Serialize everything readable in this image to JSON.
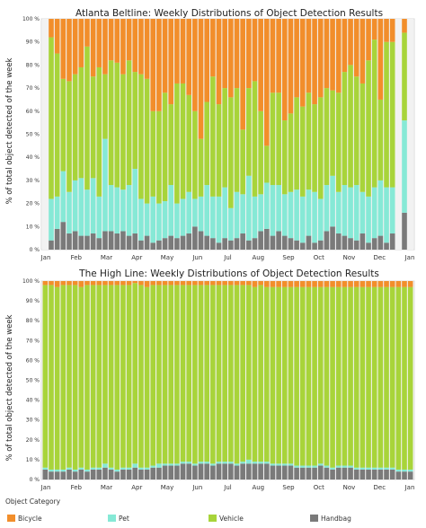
{
  "colors": {
    "bicycle": "#f28e2b",
    "pet": "#86e9d6",
    "vehicle": "#a8d43a",
    "handbag": "#7a7a7a",
    "frame": "#f2f2f2"
  },
  "legend": {
    "title": "Object Category",
    "items": [
      {
        "label": "Bicycle",
        "key": "bicycle",
        "color": "#f28e2b"
      },
      {
        "label": "Pet",
        "key": "pet",
        "color": "#86e9d6"
      },
      {
        "label": "Vehicle",
        "key": "vehicle",
        "color": "#a8d43a"
      },
      {
        "label": "Handbag",
        "key": "handbag",
        "color": "#7a7a7a"
      }
    ]
  },
  "chart_data": [
    {
      "type": "bar",
      "stacked": true,
      "title": "Atlanta Beltline: Weekly Distributions of Object Detection Results",
      "ylabel": "% of total object detected of the week",
      "ylim": [
        0,
        100
      ],
      "yticks": [
        "0 %",
        "10 %",
        "20 %",
        "30 %",
        "40 %",
        "50 %",
        "60 %",
        "70 %",
        "80 %",
        "90 %",
        "100 %"
      ],
      "month_labels": [
        "Jan",
        "Feb",
        "Mar",
        "Apr",
        "May",
        "Jun",
        "Jul",
        "Aug",
        "Sep",
        "Oct",
        "Nov",
        "Dec",
        "Jan"
      ],
      "series": [
        {
          "name": "Handbag",
          "key": "handbag",
          "values": [
            0,
            4,
            9,
            12,
            7,
            8,
            6,
            6,
            7,
            5,
            8,
            8,
            7,
            8,
            6,
            7,
            4,
            6,
            3,
            4,
            5,
            6,
            5,
            6,
            7,
            10,
            8,
            6,
            5,
            3,
            5,
            4,
            5,
            7,
            4,
            5,
            8,
            9,
            6,
            8,
            6,
            5,
            4,
            3,
            6,
            3,
            4,
            8,
            10,
            7,
            6,
            5,
            4,
            7,
            3,
            5,
            6,
            3,
            7,
            0,
            16,
            0
          ]
        },
        {
          "name": "Pet",
          "key": "pet",
          "values": [
            0,
            18,
            14,
            22,
            18,
            22,
            25,
            20,
            24,
            18,
            40,
            20,
            20,
            18,
            22,
            28,
            18,
            14,
            20,
            16,
            16,
            22,
            15,
            16,
            18,
            12,
            15,
            22,
            18,
            20,
            22,
            14,
            20,
            17,
            28,
            18,
            16,
            20,
            22,
            20,
            18,
            20,
            22,
            20,
            20,
            22,
            18,
            20,
            22,
            18,
            22,
            22,
            24,
            18,
            20,
            22,
            24,
            24,
            20,
            0,
            40,
            0
          ]
        },
        {
          "name": "Vehicle",
          "key": "vehicle",
          "values": [
            0,
            70,
            62,
            40,
            48,
            46,
            48,
            62,
            44,
            56,
            28,
            54,
            54,
            50,
            54,
            42,
            54,
            54,
            37,
            40,
            47,
            35,
            52,
            50,
            42,
            38,
            25,
            36,
            52,
            40,
            43,
            48,
            45,
            28,
            38,
            50,
            36,
            16,
            40,
            40,
            32,
            34,
            40,
            39,
            42,
            38,
            44,
            42,
            37,
            43,
            49,
            53,
            47,
            47,
            59,
            64,
            35,
            63,
            63,
            0,
            38,
            0
          ]
        },
        {
          "name": "Bicycle",
          "key": "bicycle",
          "values": [
            0,
            8,
            15,
            26,
            27,
            24,
            21,
            12,
            25,
            21,
            24,
            18,
            19,
            24,
            18,
            23,
            24,
            26,
            40,
            40,
            32,
            37,
            28,
            28,
            33,
            40,
            52,
            36,
            25,
            37,
            30,
            34,
            30,
            48,
            30,
            27,
            40,
            55,
            32,
            32,
            44,
            41,
            34,
            38,
            32,
            37,
            34,
            30,
            31,
            32,
            23,
            20,
            25,
            28,
            18,
            9,
            35,
            10,
            10,
            0,
            6,
            0
          ]
        }
      ]
    },
    {
      "type": "bar",
      "stacked": true,
      "title": "The High Line: Weekly Distributions of Object Detection Results",
      "ylabel": "% of total object detected of the week",
      "ylim": [
        0,
        100
      ],
      "yticks": [
        "0 %",
        "10 %",
        "20 %",
        "30 %",
        "40 %",
        "50 %",
        "60 %",
        "70 %",
        "80 %",
        "90 %",
        "100 %"
      ],
      "month_labels": [
        "Jan",
        "Feb",
        "Mar",
        "Apr",
        "May",
        "Jun",
        "Jul",
        "Aug",
        "Sep",
        "Oct",
        "Nov",
        "Dec",
        "Jan"
      ],
      "series": [
        {
          "name": "Handbag",
          "key": "handbag",
          "values": [
            5,
            4,
            4,
            4,
            5,
            4,
            5,
            4,
            5,
            5,
            6,
            5,
            4,
            5,
            5,
            6,
            5,
            5,
            6,
            6,
            7,
            7,
            7,
            8,
            8,
            7,
            8,
            8,
            7,
            8,
            8,
            8,
            7,
            8,
            8,
            8,
            8,
            8,
            7,
            7,
            7,
            7,
            6,
            6,
            6,
            6,
            7,
            6,
            5,
            6,
            6,
            6,
            5,
            5,
            5,
            5,
            5,
            5,
            5,
            4,
            4,
            4
          ]
        },
        {
          "name": "Pet",
          "key": "pet",
          "values": [
            1,
            1,
            1,
            1,
            1,
            1,
            1,
            1,
            1,
            1,
            2,
            1,
            1,
            1,
            1,
            2,
            1,
            1,
            1,
            2,
            1,
            1,
            1,
            1,
            1,
            1,
            1,
            1,
            1,
            1,
            1,
            1,
            1,
            1,
            2,
            1,
            1,
            1,
            1,
            1,
            1,
            1,
            1,
            1,
            1,
            1,
            1,
            1,
            1,
            1,
            1,
            1,
            1,
            1,
            1,
            1,
            1,
            1,
            1,
            1,
            1,
            1
          ]
        },
        {
          "name": "Vehicle",
          "key": "vehicle",
          "values": [
            92,
            93,
            92,
            93,
            92,
            93,
            91,
            93,
            92,
            92,
            90,
            92,
            93,
            92,
            92,
            91,
            92,
            91,
            91,
            90,
            90,
            90,
            90,
            89,
            89,
            90,
            89,
            89,
            90,
            89,
            89,
            89,
            90,
            89,
            88,
            88,
            89,
            88,
            89,
            89,
            89,
            89,
            90,
            90,
            90,
            90,
            89,
            90,
            91,
            90,
            90,
            90,
            91,
            91,
            91,
            91,
            91,
            91,
            91,
            92,
            92,
            92
          ]
        },
        {
          "name": "Bicycle",
          "key": "bicycle",
          "values": [
            2,
            2,
            3,
            2,
            2,
            2,
            3,
            2,
            2,
            2,
            2,
            2,
            2,
            2,
            2,
            1,
            2,
            3,
            2,
            2,
            2,
            2,
            2,
            2,
            2,
            2,
            2,
            2,
            2,
            2,
            2,
            2,
            2,
            2,
            2,
            3,
            2,
            3,
            3,
            3,
            3,
            3,
            3,
            3,
            3,
            3,
            3,
            3,
            3,
            3,
            3,
            3,
            3,
            3,
            3,
            3,
            3,
            3,
            3,
            3,
            3,
            3
          ]
        }
      ]
    }
  ]
}
